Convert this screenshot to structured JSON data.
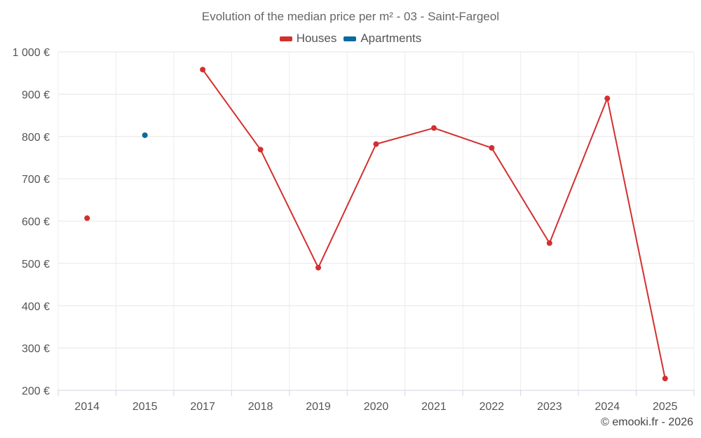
{
  "chart_data": {
    "type": "line",
    "title": "Evolution of the median price per m² - 03 - Saint-Fargeol",
    "categories": [
      "2014",
      "2015",
      "2017",
      "2018",
      "2019",
      "2020",
      "2021",
      "2022",
      "2023",
      "2024",
      "2025"
    ],
    "series": [
      {
        "name": "Houses",
        "color": "#d32f2f",
        "values": [
          607,
          null,
          958,
          769,
          490,
          782,
          820,
          773,
          548,
          890,
          228
        ]
      },
      {
        "name": "Apartments",
        "color": "#0b6a9e",
        "values": [
          null,
          803,
          null,
          null,
          null,
          null,
          null,
          null,
          null,
          null,
          null
        ]
      }
    ],
    "yticks": [
      200,
      300,
      400,
      500,
      600,
      700,
      800,
      900,
      1000
    ],
    "ytick_labels": [
      "200 €",
      "300 €",
      "400 €",
      "500 €",
      "600 €",
      "700 €",
      "800 €",
      "900 €",
      "1 000 €"
    ],
    "ylim": [
      200,
      1000
    ],
    "xlabel": "",
    "ylabel": "",
    "grid": true,
    "legend_position": "top-center"
  },
  "credit": "© emooki.fr - 2026"
}
